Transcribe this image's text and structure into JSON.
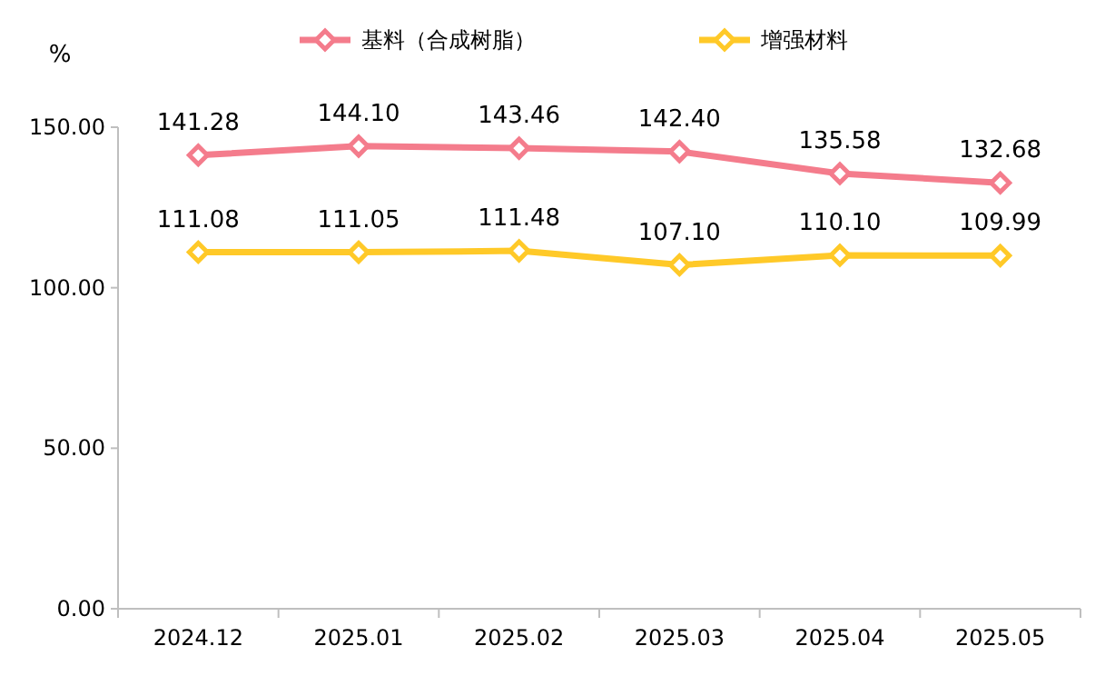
{
  "chart_data": {
    "type": "line",
    "ylabel": "%",
    "categories": [
      "2024.12",
      "2025.01",
      "2025.02",
      "2025.03",
      "2025.04",
      "2025.05"
    ],
    "series": [
      {
        "name": "基料（合成树脂）",
        "color": "#f47c8c",
        "values": [
          141.28,
          144.1,
          143.46,
          142.4,
          135.58,
          132.68
        ],
        "value_labels": [
          "141.28",
          "144.10",
          "143.46",
          "142.40",
          "135.58",
          "132.68"
        ]
      },
      {
        "name": "增强材料",
        "color": "#ffc928",
        "values": [
          111.08,
          111.05,
          111.48,
          107.1,
          110.1,
          109.99
        ],
        "value_labels": [
          "111.08",
          "111.05",
          "111.48",
          "107.10",
          "110.10",
          "109.99"
        ]
      }
    ],
    "ylim": [
      0,
      150
    ],
    "yticks": [
      {
        "value": 0,
        "label": "0.00"
      },
      {
        "value": 50,
        "label": "50.00"
      },
      {
        "value": 100,
        "label": "100.00"
      },
      {
        "value": 150,
        "label": "150.00"
      }
    ],
    "grid": false,
    "legend": "top",
    "marker": "diamond",
    "line_style": "solid"
  }
}
